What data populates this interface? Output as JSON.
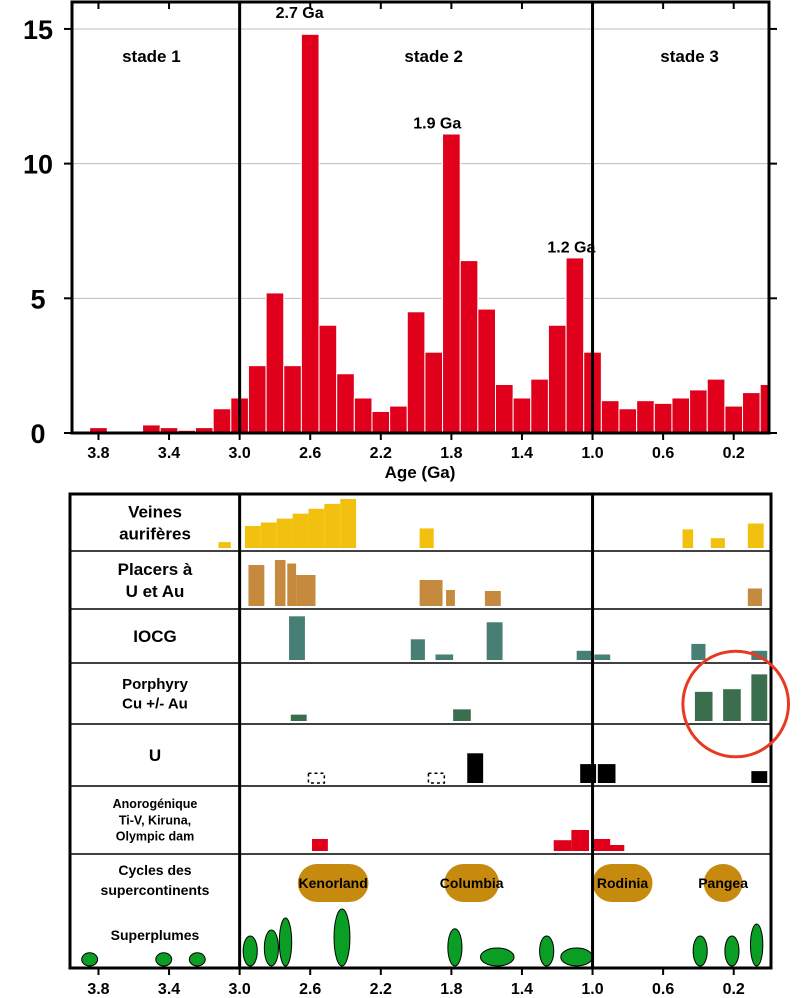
{
  "chart_data": {
    "type": "bar",
    "x_axis": {
      "label": "Age (Ga)",
      "reversed": true,
      "range": [
        3.95,
        0.0
      ],
      "ticks": [
        3.8,
        3.4,
        3.0,
        2.6,
        2.2,
        1.8,
        1.4,
        1.0,
        0.6,
        0.2
      ],
      "tick_labels": [
        "3.8",
        "3.4",
        "3.0",
        "2.6",
        "2.2",
        "1.8",
        "1.4",
        "1.0",
        "0.6",
        "0.2"
      ]
    },
    "y_axis": {
      "range": [
        0,
        16
      ],
      "ticks": [
        0,
        5,
        10,
        15
      ],
      "tick_labels": [
        "0",
        "5",
        "10",
        "15"
      ]
    },
    "bar_color": "#e0001b",
    "bin_width": 0.1,
    "stage_dividers": [
      3.0,
      1.0
    ],
    "stages": [
      {
        "label": "stade 1",
        "x": 3.5
      },
      {
        "label": "stade 2",
        "x": 1.9
      },
      {
        "label": "stade 3",
        "x": 0.45
      }
    ],
    "annotations": [
      {
        "text": "2.7 Ga",
        "x": 2.66,
        "y": 15.4
      },
      {
        "text": "1.9 Ga",
        "x": 1.88,
        "y": 11.3
      },
      {
        "text": "1.2 Ga",
        "x": 1.12,
        "y": 6.7
      }
    ],
    "histogram": [
      {
        "x": 3.8,
        "value": 0.2
      },
      {
        "x": 3.7,
        "value": 0.05
      },
      {
        "x": 3.6,
        "value": 0.05
      },
      {
        "x": 3.5,
        "value": 0.3
      },
      {
        "x": 3.4,
        "value": 0.2
      },
      {
        "x": 3.3,
        "value": 0.1
      },
      {
        "x": 3.2,
        "value": 0.2
      },
      {
        "x": 3.1,
        "value": 0.9
      },
      {
        "x": 3.0,
        "value": 1.3
      },
      {
        "x": 2.9,
        "value": 2.5
      },
      {
        "x": 2.8,
        "value": 5.2
      },
      {
        "x": 2.7,
        "value": 2.5
      },
      {
        "x": 2.6,
        "value": 14.8
      },
      {
        "x": 2.5,
        "value": 4.0
      },
      {
        "x": 2.4,
        "value": 2.2
      },
      {
        "x": 2.3,
        "value": 1.3
      },
      {
        "x": 2.2,
        "value": 0.8
      },
      {
        "x": 2.1,
        "value": 1.0
      },
      {
        "x": 2.0,
        "value": 4.5
      },
      {
        "x": 1.9,
        "value": 3.0
      },
      {
        "x": 1.8,
        "value": 11.1
      },
      {
        "x": 1.7,
        "value": 6.4
      },
      {
        "x": 1.6,
        "value": 4.6
      },
      {
        "x": 1.5,
        "value": 1.8
      },
      {
        "x": 1.4,
        "value": 1.3
      },
      {
        "x": 1.3,
        "value": 2.0
      },
      {
        "x": 1.2,
        "value": 4.0
      },
      {
        "x": 1.1,
        "value": 6.5
      },
      {
        "x": 1.0,
        "value": 3.0
      },
      {
        "x": 0.9,
        "value": 1.2
      },
      {
        "x": 0.8,
        "value": 0.9
      },
      {
        "x": 0.7,
        "value": 1.2
      },
      {
        "x": 0.6,
        "value": 1.1
      },
      {
        "x": 0.5,
        "value": 1.3
      },
      {
        "x": 0.4,
        "value": 1.6
      },
      {
        "x": 0.3,
        "value": 2.0
      },
      {
        "x": 0.2,
        "value": 1.0
      },
      {
        "x": 0.1,
        "value": 1.5
      },
      {
        "x": 0.0,
        "value": 1.8
      }
    ]
  },
  "deposit_panel": {
    "x_ticks": [
      3.8,
      3.4,
      3.0,
      2.6,
      2.2,
      1.8,
      1.4,
      1.0,
      0.6,
      0.2
    ],
    "x_tick_labels": [
      "3.8",
      "3.4",
      "3.0",
      "2.6",
      "2.2",
      "1.8",
      "1.4",
      "1.0",
      "0.6",
      "0.2"
    ],
    "rows": [
      {
        "label_lines": [
          "Veines",
          "aurifères"
        ],
        "font": "large",
        "color": "#f2c10f",
        "bars": [
          [
            3.12,
            3.05,
            0.12
          ],
          [
            2.97,
            2.88,
            0.45
          ],
          [
            2.88,
            2.79,
            0.52
          ],
          [
            2.79,
            2.7,
            0.6
          ],
          [
            2.7,
            2.61,
            0.7
          ],
          [
            2.61,
            2.52,
            0.8
          ],
          [
            2.52,
            2.43,
            0.9
          ],
          [
            2.43,
            2.34,
            1.0
          ],
          [
            1.98,
            1.9,
            0.4
          ],
          [
            0.49,
            0.43,
            0.38
          ],
          [
            0.33,
            0.25,
            0.2
          ],
          [
            0.12,
            0.03,
            0.5
          ]
        ]
      },
      {
        "label_lines": [
          "Placers à",
          "U et Au"
        ],
        "font": "large",
        "color": "#c68a3f",
        "bars": [
          [
            2.95,
            2.86,
            0.82
          ],
          [
            2.8,
            2.74,
            0.92
          ],
          [
            2.73,
            2.68,
            0.85
          ],
          [
            2.68,
            2.57,
            0.62
          ],
          [
            1.98,
            1.85,
            0.52
          ],
          [
            1.83,
            1.78,
            0.32
          ],
          [
            1.61,
            1.52,
            0.3
          ],
          [
            0.12,
            0.04,
            0.35
          ]
        ]
      },
      {
        "label_lines": [
          "IOCG"
        ],
        "font": "large",
        "color": "#477f74",
        "bars": [
          [
            2.72,
            2.63,
            0.95
          ],
          [
            2.03,
            1.95,
            0.45
          ],
          [
            1.89,
            1.79,
            0.12
          ],
          [
            1.6,
            1.51,
            0.82
          ],
          [
            1.09,
            1.0,
            0.2
          ],
          [
            0.99,
            0.9,
            0.12
          ],
          [
            0.44,
            0.36,
            0.35
          ],
          [
            0.1,
            0.01,
            0.2
          ]
        ]
      },
      {
        "label_lines": [
          "Porphyry",
          "Cu  +/- Au"
        ],
        "font": "medium",
        "color": "#3a6e4c",
        "bars": [
          [
            2.71,
            2.62,
            0.12
          ],
          [
            1.79,
            1.69,
            0.22
          ],
          [
            0.42,
            0.32,
            0.55
          ],
          [
            0.26,
            0.16,
            0.6
          ],
          [
            0.1,
            0.01,
            0.88
          ]
        ]
      },
      {
        "label_lines": [
          "U"
        ],
        "font": "large",
        "color": "#000000",
        "bars": [
          [
            1.71,
            1.62,
            0.55
          ],
          [
            1.07,
            0.98,
            0.35
          ],
          [
            0.97,
            0.87,
            0.35
          ],
          [
            0.1,
            0.01,
            0.22
          ]
        ],
        "dashed": [
          [
            2.61,
            2.52,
            0.18
          ],
          [
            1.93,
            1.84,
            0.18
          ]
        ]
      },
      {
        "label_lines": [
          "Anorogénique",
          "Ti-V, Kiruna,",
          "Olympic dam"
        ],
        "font": "small",
        "color": "#e0001b",
        "bars": [
          [
            2.59,
            2.5,
            0.2
          ],
          [
            1.22,
            1.12,
            0.18
          ],
          [
            1.12,
            1.02,
            0.35
          ],
          [
            1.0,
            0.9,
            0.2
          ],
          [
            0.92,
            0.82,
            0.1
          ]
        ]
      }
    ],
    "supercontinents_row": {
      "label_lines": [
        "Cycles des",
        "supercontinents"
      ],
      "color": "#c68a0e",
      "items": [
        {
          "name": "Kenorland",
          "x_from": 2.67,
          "x_to": 2.27
        },
        {
          "name": "Columbia",
          "x_from": 1.84,
          "x_to": 1.53
        },
        {
          "name": "Rodinia",
          "x_from": 1.0,
          "x_to": 0.66
        },
        {
          "name": "Pangea",
          "x_from": 0.37,
          "x_to": 0.15
        }
      ]
    },
    "superplumes_row": {
      "label_lines": [
        "Superplumes"
      ],
      "color": "#0a9e25",
      "plumes": [
        {
          "x": 3.85,
          "h": 0.22,
          "w": 0.09
        },
        {
          "x": 3.43,
          "h": 0.22,
          "w": 0.09
        },
        {
          "x": 3.24,
          "h": 0.22,
          "w": 0.09
        },
        {
          "x": 2.94,
          "h": 0.5,
          "w": 0.08
        },
        {
          "x": 2.82,
          "h": 0.6,
          "w": 0.08
        },
        {
          "x": 2.74,
          "h": 0.8,
          "w": 0.07
        },
        {
          "x": 2.42,
          "h": 0.95,
          "w": 0.09
        },
        {
          "x": 1.78,
          "h": 0.62,
          "w": 0.08
        },
        {
          "x": 1.54,
          "h": 0.3,
          "w": 0.19
        },
        {
          "x": 1.26,
          "h": 0.5,
          "w": 0.08
        },
        {
          "x": 1.09,
          "h": 0.3,
          "w": 0.18
        },
        {
          "x": 0.39,
          "h": 0.5,
          "w": 0.08
        },
        {
          "x": 0.21,
          "h": 0.5,
          "w": 0.08
        },
        {
          "x": 0.07,
          "h": 0.7,
          "w": 0.07
        }
      ]
    },
    "highlight": {
      "color": "#e83a23",
      "center_age": 0.2,
      "radius_age": 0.57
    }
  }
}
